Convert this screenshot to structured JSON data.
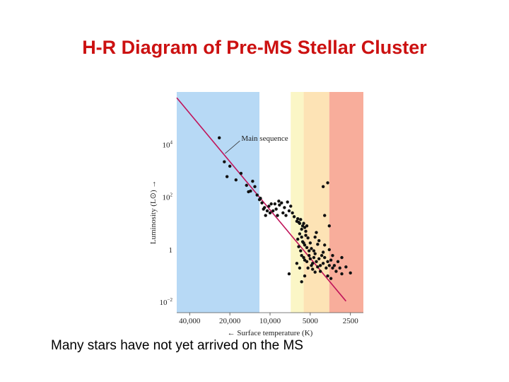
{
  "slide": {
    "title": "H-R Diagram of Pre-MS Stellar Cluster",
    "caption": "Many stars have not yet arrived on the MS"
  },
  "chart_data": {
    "type": "scatter",
    "title": "",
    "xlabel": "Surface temperature (K)",
    "ylabel": "Luminosity (L⊙)",
    "x_scale": "log, decreasing",
    "y_scale": "log",
    "xlim": [
      50000,
      2000
    ],
    "ylim": [
      0.004,
      1000000
    ],
    "x_ticks": [
      {
        "value": 40000,
        "label": "40,000"
      },
      {
        "value": 20000,
        "label": "20,000"
      },
      {
        "value": 10000,
        "label": "10,000"
      },
      {
        "value": 5000,
        "label": "5000"
      },
      {
        "value": 2500,
        "label": "2500"
      }
    ],
    "y_ticks": [
      {
        "value": 10000,
        "base": "10",
        "exp": "4"
      },
      {
        "value": 100,
        "base": "10",
        "exp": "2"
      },
      {
        "value": 1,
        "base": "1",
        "exp": ""
      },
      {
        "value": 0.01,
        "base": "10",
        "exp": "−2"
      }
    ],
    "temperature_bands": [
      {
        "from": 50000,
        "to": 12000,
        "color": "#b7d9f5"
      },
      {
        "from": 12000,
        "to": 7000,
        "color": "#ffffff"
      },
      {
        "from": 7000,
        "to": 5600,
        "color": "#fbf6c6"
      },
      {
        "from": 5600,
        "to": 3600,
        "color": "#fde3b5"
      },
      {
        "from": 3600,
        "to": 2000,
        "color": "#f8ad9b"
      }
    ],
    "main_sequence": {
      "name": "Main sequence",
      "color": "#c0145a",
      "points": [
        [
          50000,
          600000
        ],
        [
          2700,
          0.011
        ]
      ]
    },
    "annotation": {
      "text": "Main sequence",
      "points_to": [
        22000,
        4000
      ]
    },
    "stars": [
      [
        24000,
        18000
      ],
      [
        22000,
        2200
      ],
      [
        20000,
        1500
      ],
      [
        21000,
        600
      ],
      [
        18000,
        450
      ],
      [
        16500,
        800
      ],
      [
        15000,
        280
      ],
      [
        14000,
        170
      ],
      [
        13500,
        400
      ],
      [
        13000,
        250
      ],
      [
        12500,
        120
      ],
      [
        14500,
        160
      ],
      [
        12000,
        80
      ],
      [
        11500,
        60
      ],
      [
        11000,
        40
      ],
      [
        10500,
        30
      ],
      [
        10000,
        25
      ],
      [
        9500,
        30
      ],
      [
        10200,
        45
      ],
      [
        9800,
        55
      ],
      [
        9000,
        35
      ],
      [
        8800,
        20
      ],
      [
        8500,
        50
      ],
      [
        8200,
        60
      ],
      [
        8000,
        25
      ],
      [
        7600,
        20
      ],
      [
        7800,
        40
      ],
      [
        7200,
        30
      ],
      [
        7000,
        45
      ],
      [
        6800,
        25
      ],
      [
        9200,
        55
      ],
      [
        8600,
        70
      ],
      [
        7400,
        65
      ],
      [
        10800,
        20
      ],
      [
        11200,
        35
      ],
      [
        11800,
        90
      ],
      [
        6600,
        18
      ],
      [
        6300,
        12
      ],
      [
        6000,
        10
      ],
      [
        5700,
        8
      ],
      [
        6200,
        15
      ],
      [
        5900,
        14
      ],
      [
        6100,
        11
      ],
      [
        5800,
        6
      ],
      [
        5600,
        10
      ],
      [
        5500,
        7
      ],
      [
        5400,
        5
      ],
      [
        5300,
        8
      ],
      [
        6000,
        4
      ],
      [
        5800,
        3
      ],
      [
        6200,
        2.5
      ],
      [
        5700,
        2
      ],
      [
        5500,
        1.5
      ],
      [
        5300,
        1.2
      ],
      [
        5200,
        2.8
      ],
      [
        5000,
        1.8
      ],
      [
        4900,
        1.1
      ],
      [
        4700,
        0.9
      ],
      [
        4600,
        0.7
      ],
      [
        4400,
        1.6
      ],
      [
        6100,
        1.3
      ],
      [
        5900,
        0.9
      ],
      [
        5800,
        0.6
      ],
      [
        5600,
        0.5
      ],
      [
        5500,
        0.4
      ],
      [
        5300,
        0.35
      ],
      [
        5100,
        0.6
      ],
      [
        5000,
        0.45
      ],
      [
        4800,
        0.3
      ],
      [
        4700,
        0.5
      ],
      [
        4500,
        0.35
      ],
      [
        4300,
        0.45
      ],
      [
        4200,
        0.25
      ],
      [
        4100,
        0.6
      ],
      [
        4000,
        0.3
      ],
      [
        3900,
        0.5
      ],
      [
        3800,
        0.2
      ],
      [
        3700,
        0.35
      ],
      [
        3600,
        0.25
      ],
      [
        3500,
        0.4
      ],
      [
        3400,
        0.2
      ],
      [
        3300,
        0.25
      ],
      [
        3200,
        0.15
      ],
      [
        3000,
        0.2
      ],
      [
        2900,
        0.12
      ],
      [
        2700,
        0.22
      ],
      [
        2500,
        0.13
      ],
      [
        6300,
        0.3
      ],
      [
        6000,
        0.2
      ],
      [
        5500,
        0.1
      ],
      [
        7200,
        0.12
      ],
      [
        5800,
        0.06
      ],
      [
        4800,
        0.18
      ],
      [
        4600,
        0.14
      ],
      [
        3900,
        1.5
      ],
      [
        3600,
        1
      ],
      [
        4300,
        2.2
      ],
      [
        4000,
        0.8
      ],
      [
        3400,
        0.6
      ],
      [
        3100,
        0.35
      ],
      [
        2900,
        0.5
      ],
      [
        5100,
        0.9
      ],
      [
        5600,
        1.8
      ],
      [
        5400,
        3.5
      ],
      [
        4400,
        0.22
      ],
      [
        4200,
        0.15
      ],
      [
        3700,
        0.1
      ],
      [
        3500,
        0.08
      ],
      [
        4900,
        0.25
      ],
      [
        5200,
        0.2
      ],
      [
        4600,
        3
      ],
      [
        4500,
        4.5
      ],
      [
        4000,
        250
      ],
      [
        3700,
        350
      ],
      [
        3900,
        20
      ],
      [
        3600,
        8
      ]
    ]
  }
}
